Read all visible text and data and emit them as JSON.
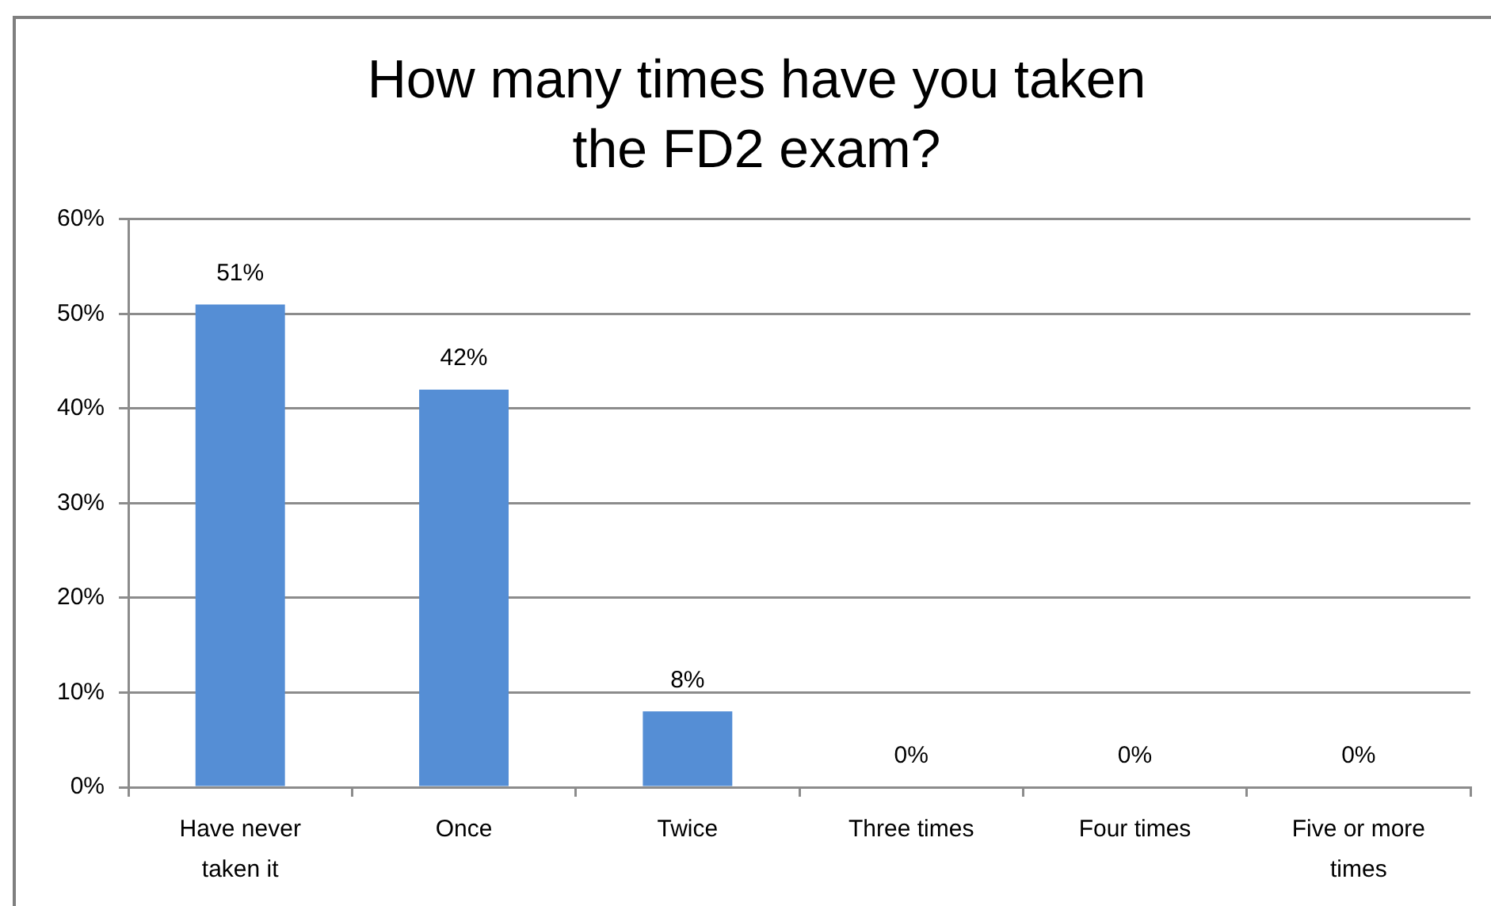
{
  "chart_data": {
    "type": "bar",
    "title": "How many times have you taken the FD2 exam?",
    "categories": [
      "Have never taken it",
      "Once",
      "Twice",
      "Three times",
      "Four times",
      "Five or more times"
    ],
    "values": [
      51,
      42,
      8,
      0,
      0,
      0
    ],
    "color": "#558ed5",
    "value_labels": [
      "51%",
      "42%",
      "8%",
      "0%",
      "0%",
      "0%"
    ],
    "ylim": [
      0,
      60
    ],
    "yticks": [
      {
        "value": 0,
        "label": "0%"
      },
      {
        "value": 10,
        "label": "10%"
      },
      {
        "value": 20,
        "label": "20%"
      },
      {
        "value": 30,
        "label": "30%"
      },
      {
        "value": 40,
        "label": "40%"
      },
      {
        "value": 50,
        "label": "50%"
      },
      {
        "value": 60,
        "label": "60%"
      }
    ],
    "grid": "y"
  }
}
